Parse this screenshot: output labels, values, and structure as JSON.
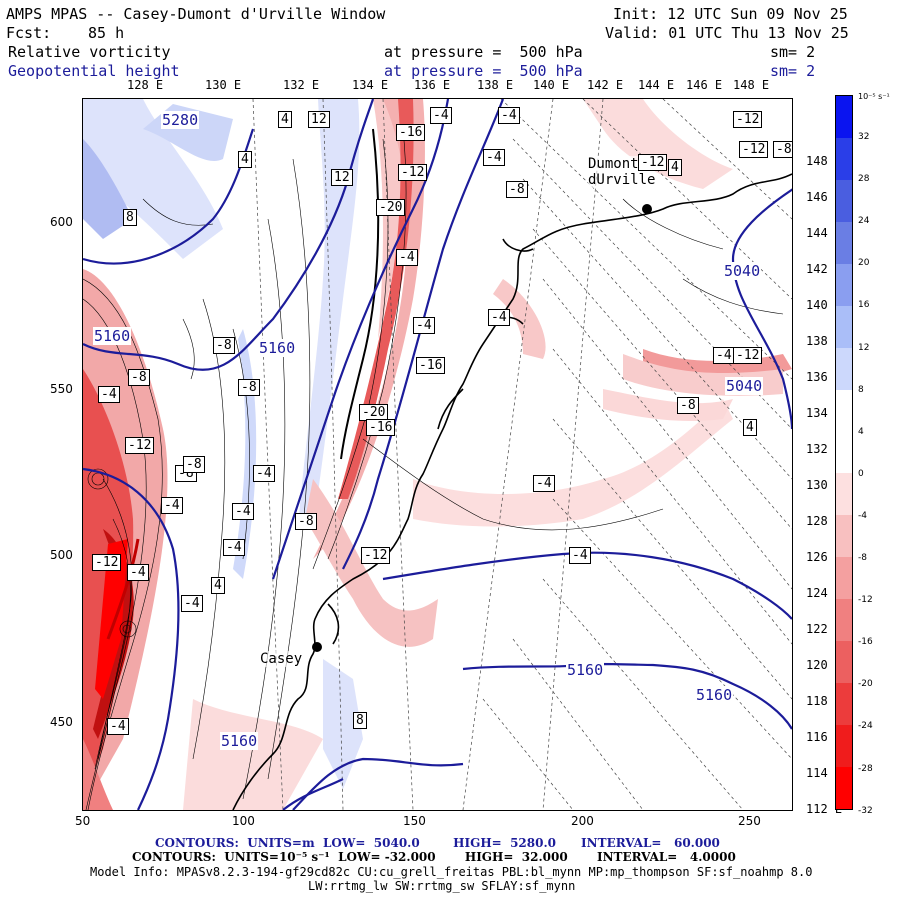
{
  "header": {
    "title": "AMPS MPAS -- Casey-Dumont d'Urville Window",
    "init": "Init: 12 UTC Sun 09 Nov 25",
    "fcst_label": "Fcst:",
    "fcst_value": "85 h",
    "valid": "Valid: 01 UTC Thu 13 Nov 25",
    "field1": "Relative vorticity",
    "field1_level": "at pressure =  500 hPa",
    "field1_sm": "sm= 2",
    "field2": "Geopotential height",
    "field2_level": "at pressure =  500 hPa",
    "field2_sm": "sm= 2"
  },
  "lon_labels": [
    "128 E",
    "130 E",
    "132 E",
    "134 E",
    "136 E",
    "138 E",
    "140 E",
    "142 E",
    "144 E",
    "146 E",
    "148 E"
  ],
  "lat_labels": [
    "148 E",
    "146 E",
    "144 E",
    "142 E",
    "140 E",
    "138 E",
    "136 E",
    "134 E",
    "132 E",
    "130 E",
    "128 E",
    "126 E",
    "124 E",
    "122 E",
    "120 E",
    "118 E",
    "116 E",
    "114 E",
    "112 E"
  ],
  "x_axis": [
    "50",
    "100",
    "150",
    "200",
    "250"
  ],
  "y_axis": [
    "600",
    "550",
    "500",
    "450"
  ],
  "colorbar": {
    "unit": "10⁻⁵ s⁻¹",
    "labels": [
      "32",
      "28",
      "24",
      "20",
      "16",
      "12",
      "8",
      "4",
      "0",
      "-4",
      "-8",
      "-12",
      "-16",
      "-20",
      "-24",
      "-28",
      "-32"
    ],
    "colors": [
      "#0a14f0",
      "#2a3ee8",
      "#4a5ee0",
      "#6a7ee4",
      "#8a9ef0",
      "#aabef8",
      "#ccd8fc",
      "#ffffff",
      "#ffffff",
      "#fde0e0",
      "#f8c0c0",
      "#f4a0a0",
      "#f08080",
      "#ec6060",
      "#ec3c3c",
      "#f01c1c",
      "#ff0000"
    ]
  },
  "stations": [
    {
      "name": "Dumont dUrville",
      "line1": "Dumont",
      "line2": "dUrville"
    },
    {
      "name": "Casey",
      "line1": "Casey"
    }
  ],
  "height_labels": [
    "5280",
    "5160",
    "5160",
    "5040",
    "5040",
    "5160",
    "5160",
    "5160"
  ],
  "vort_labels": [
    "-4",
    "-4",
    "-12",
    "-12",
    "-8",
    "4",
    "4",
    "12",
    "-4",
    "-16",
    "-12",
    "-8",
    "4",
    "8",
    "12",
    "-20",
    "-4",
    "-4",
    "-4",
    "-12",
    "-4",
    "-12",
    "-8",
    "4",
    "-8",
    "-8",
    "-4",
    "-4",
    "-4",
    "-20",
    "-16",
    "-16",
    "-8",
    "-8",
    "-12",
    "-4",
    "-4",
    "-4",
    "-4",
    "-4",
    "-12",
    "-12",
    "-8",
    "-4",
    "4",
    "8",
    "-8",
    "-4"
  ],
  "footer": {
    "line1_contours": "CONTOURS:  UNITS=m  LOW=  5040.0        HIGH=  5280.0      INTERVAL=   60.000",
    "line2_contours": "CONTOURS:  UNITS=10⁻⁵ s⁻¹  LOW= -32.000       HIGH=  32.000       INTERVAL=   4.0000",
    "model_info": "Model Info: MPASv8.2.3-194-gf29cd82c CU:cu_grell_freitas PBL:bl_mynn MP:mp_thompson SF:sf_noahmp 8.0",
    "model_info2": "LW:rrtmg_lw SW:rrtmg_sw SFLAY:sf_mynn"
  },
  "colors": {
    "height_contour": "#1c1c9a",
    "coast": "#000000"
  }
}
